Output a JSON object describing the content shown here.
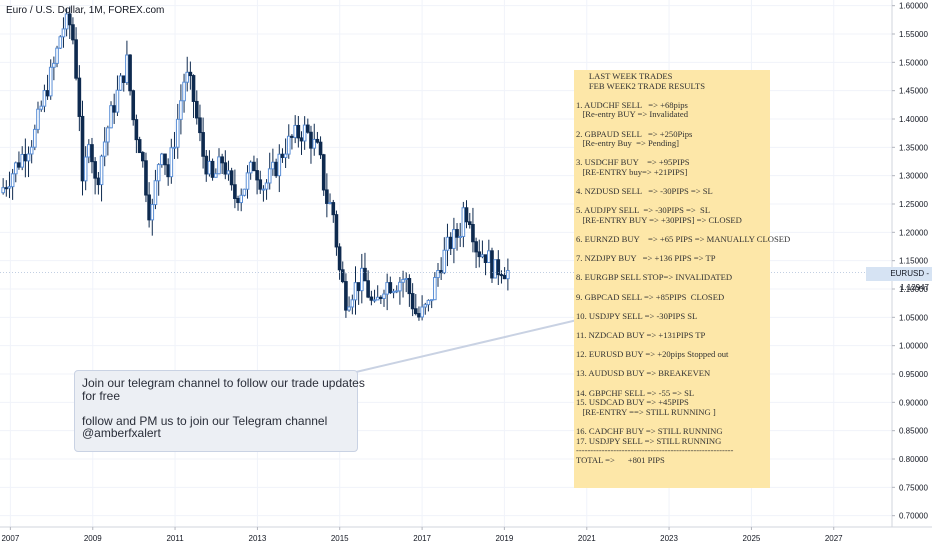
{
  "header": {
    "title": "Euro / U.S. Dollar, 1M, FOREX.com"
  },
  "price_tag": {
    "symbol": "EURUSD",
    "value": "1.12947"
  },
  "note": {
    "lines": [
      "      LAST WEEK TRADES",
      "      FEB WEEK2 TRADE RESULTS",
      "",
      "1. AUDCHF SELL   => +68pips",
      "   [Re-entry BUY => Invalidated",
      "",
      "2. GBPAUD SELL   => +250Pips",
      "   [Re-entry Buy  => Pending]",
      "",
      "3. USDCHF BUY    => +95PIPS",
      "   [RE-ENTRY buy=> +21PIPS]",
      "",
      "4. NZDUSD SELL   => -30PIPS => SL",
      "",
      "5. AUDJPY SELL  => -30PIPS =>  SL",
      "   [RE-ENTRY BUY => +30PIPS] => CLOSED",
      "",
      "6. EURNZD BUY    => +65 PIPS => MANUALLY CLOSED",
      "",
      "7. NZDJPY BUY   => +136 PIPS => TP",
      "",
      "8. EURGBP SELL STOP=> INVALIDATED",
      "",
      "9. GBPCAD SELL => +85PIPS  CLOSED",
      "",
      "10. USDJPY SELL => -30PIPS SL",
      "",
      "11. NZDCAD BUY => +131PIPS TP",
      "",
      "12. EURUSD BUY => +20pips Stopped out",
      "",
      "13. AUDUSD BUY => BREAKEVEN",
      "",
      "14. GBPCHF SELL => -55 => SL",
      "15. USDCAD BUY => +45PIPS",
      "   [RE-ENTRY ==> STILL RUNNING ]",
      "",
      "16. CADCHF BUY => STILL RUNNING",
      "17. USDJPY SELL => STILL RUNNING",
      "-------------------------------------------------------",
      "TOTAL =>      +801 PIPS"
    ]
  },
  "callout": {
    "lines": [
      "Join our telegram channel to follow our trade updates",
      "for free",
      "",
      "follow and PM us to join our Telegram channel",
      "@amberfxalert"
    ]
  },
  "colors": {
    "up": "#5b8fd6",
    "down": "#0e2a4f",
    "grid": "#f0f3fa",
    "axis_text": "#131722"
  },
  "chart_data": {
    "type": "candlestick",
    "title": "Euro / U.S. Dollar, 1M, FOREX.com",
    "x_axis": {
      "type": "date",
      "range": [
        "2006-10-01",
        "2028-06-01"
      ],
      "tick_labels": [
        "2007",
        "2009",
        "2011",
        "2013",
        "2015",
        "2017",
        "2019",
        "2021",
        "2023",
        "2025",
        "2027"
      ]
    },
    "y_axis": {
      "position": "right",
      "range": [
        0.68,
        1.61
      ],
      "tick_labels": [
        "1.60000",
        "1.55000",
        "1.50000",
        "1.45000",
        "1.40000",
        "1.35000",
        "1.30000",
        "1.25000",
        "1.20000",
        "1.15000",
        "1.10000",
        "1.05000",
        "1.00000",
        "0.95000",
        "0.90000",
        "0.85000",
        "0.80000",
        "0.75000",
        "0.70000"
      ]
    },
    "grid": true,
    "current_price": 1.12947,
    "close_path": [
      [
        "2006-10-01",
        1.27
      ],
      [
        "2007-01-01",
        1.3
      ],
      [
        "2007-04-01",
        1.33
      ],
      [
        "2007-06-01",
        1.35
      ],
      [
        "2007-08-01",
        1.37
      ],
      [
        "2007-10-01",
        1.42
      ],
      [
        "2007-12-01",
        1.46
      ],
      [
        "2008-02-01",
        1.5
      ],
      [
        "2008-04-01",
        1.56
      ],
      [
        "2008-06-01",
        1.57
      ],
      [
        "2008-07-01",
        1.56
      ],
      [
        "2008-09-01",
        1.43
      ],
      [
        "2008-10-01",
        1.27
      ],
      [
        "2008-12-01",
        1.38
      ],
      [
        "2009-02-01",
        1.27
      ],
      [
        "2009-03-01",
        1.32
      ],
      [
        "2009-06-01",
        1.4
      ],
      [
        "2009-09-01",
        1.46
      ],
      [
        "2009-11-01",
        1.5
      ],
      [
        "2010-01-01",
        1.39
      ],
      [
        "2010-03-01",
        1.35
      ],
      [
        "2010-06-01",
        1.22
      ],
      [
        "2010-09-01",
        1.36
      ],
      [
        "2010-11-01",
        1.3
      ],
      [
        "2011-01-01",
        1.37
      ],
      [
        "2011-04-01",
        1.48
      ],
      [
        "2011-06-01",
        1.45
      ],
      [
        "2011-09-01",
        1.34
      ],
      [
        "2011-12-01",
        1.29
      ],
      [
        "2012-03-01",
        1.33
      ],
      [
        "2012-06-01",
        1.26
      ],
      [
        "2012-09-01",
        1.28
      ],
      [
        "2012-12-01",
        1.32
      ],
      [
        "2013-03-01",
        1.28
      ],
      [
        "2013-06-01",
        1.31
      ],
      [
        "2013-09-01",
        1.35
      ],
      [
        "2013-12-01",
        1.37
      ],
      [
        "2014-03-01",
        1.38
      ],
      [
        "2014-05-01",
        1.36
      ],
      [
        "2014-07-01",
        1.34
      ],
      [
        "2014-09-01",
        1.26
      ],
      [
        "2014-11-01",
        1.24
      ],
      [
        "2015-01-01",
        1.13
      ],
      [
        "2015-03-01",
        1.08
      ],
      [
        "2015-05-01",
        1.1
      ],
      [
        "2015-08-01",
        1.12
      ],
      [
        "2015-11-01",
        1.06
      ],
      [
        "2016-02-01",
        1.11
      ],
      [
        "2016-05-01",
        1.11
      ],
      [
        "2016-08-01",
        1.12
      ],
      [
        "2016-11-01",
        1.06
      ],
      [
        "2016-12-01",
        1.05
      ],
      [
        "2017-03-01",
        1.07
      ],
      [
        "2017-06-01",
        1.14
      ],
      [
        "2017-09-01",
        1.18
      ],
      [
        "2017-12-01",
        1.2
      ],
      [
        "2018-01-01",
        1.24
      ],
      [
        "2018-03-01",
        1.23
      ],
      [
        "2018-05-01",
        1.17
      ],
      [
        "2018-08-01",
        1.16
      ],
      [
        "2018-10-01",
        1.13
      ],
      [
        "2018-12-01",
        1.14
      ],
      [
        "2019-02-01",
        1.13
      ]
    ]
  }
}
